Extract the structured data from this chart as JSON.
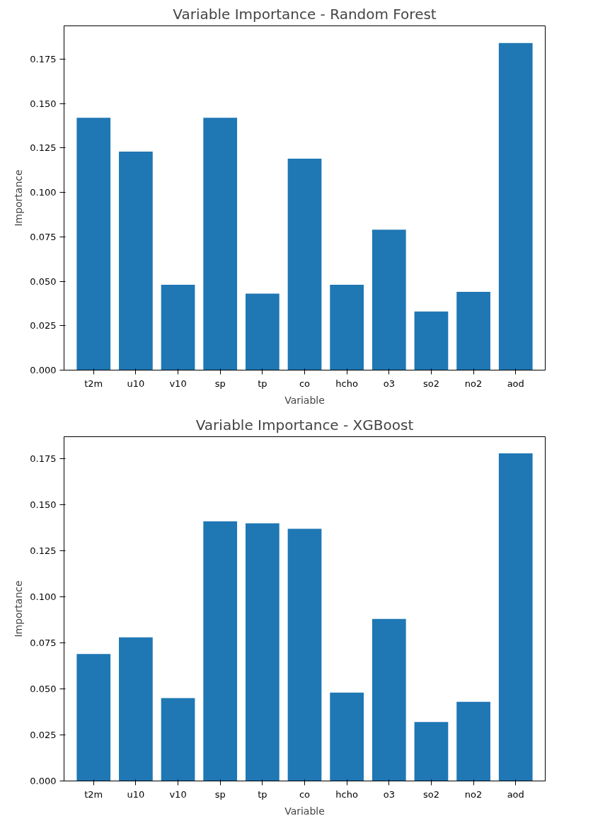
{
  "chart_data": [
    {
      "type": "bar",
      "title": "Variable Importance - Random Forest",
      "xlabel": "Variable",
      "ylabel": "Importance",
      "categories": [
        "t2m",
        "u10",
        "v10",
        "sp",
        "tp",
        "co",
        "hcho",
        "o3",
        "so2",
        "no2",
        "aod"
      ],
      "values": [
        0.142,
        0.123,
        0.048,
        0.142,
        0.043,
        0.119,
        0.048,
        0.079,
        0.033,
        0.044,
        0.184
      ],
      "color": "#1f77b4",
      "ylim": [
        0,
        0.1937
      ],
      "yticks": [
        {
          "value": 0,
          "label": "0.000"
        },
        {
          "value": 0.025,
          "label": "0.025"
        },
        {
          "value": 0.05,
          "label": "0.050"
        },
        {
          "value": 0.075,
          "label": "0.075"
        },
        {
          "value": 0.1,
          "label": "0.100"
        },
        {
          "value": 0.125,
          "label": "0.125"
        },
        {
          "value": 0.15,
          "label": "0.150"
        },
        {
          "value": 0.175,
          "label": "0.175"
        }
      ],
      "grid": false
    },
    {
      "type": "bar",
      "title": "Variable Importance - XGBoost",
      "xlabel": "Variable",
      "ylabel": "Importance",
      "categories": [
        "t2m",
        "u10",
        "v10",
        "sp",
        "tp",
        "co",
        "hcho",
        "o3",
        "so2",
        "no2",
        "aod"
      ],
      "values": [
        0.069,
        0.078,
        0.045,
        0.141,
        0.14,
        0.137,
        0.048,
        0.088,
        0.032,
        0.043,
        0.178
      ],
      "color": "#1f77b4",
      "ylim": [
        0,
        0.187
      ],
      "yticks": [
        {
          "value": 0,
          "label": "0.000"
        },
        {
          "value": 0.025,
          "label": "0.025"
        },
        {
          "value": 0.05,
          "label": "0.050"
        },
        {
          "value": 0.075,
          "label": "0.075"
        },
        {
          "value": 0.1,
          "label": "0.100"
        },
        {
          "value": 0.125,
          "label": "0.125"
        },
        {
          "value": 0.15,
          "label": "0.150"
        },
        {
          "value": 0.175,
          "label": "0.175"
        }
      ],
      "grid": false
    }
  ]
}
